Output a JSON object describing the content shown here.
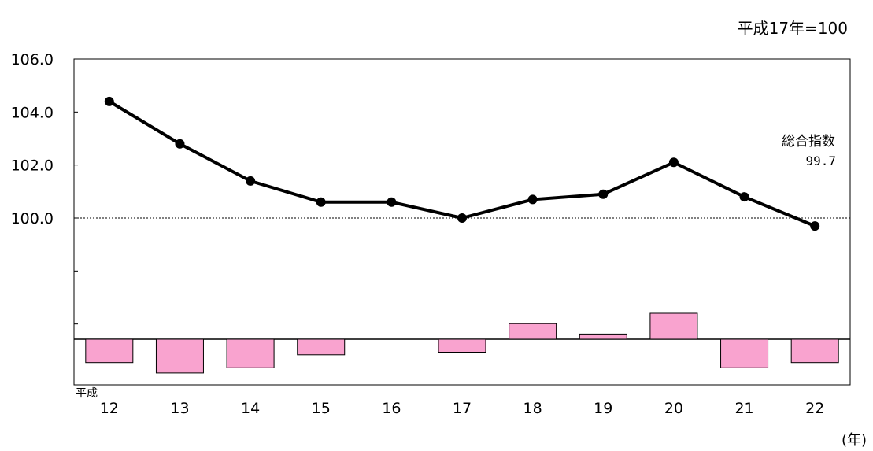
{
  "base_note": "平成17年=100",
  "unit_label": "(年)",
  "era_label": "平成",
  "series_label": "総合指数",
  "series_last_value": "99.7",
  "colors": {
    "line": "#000000",
    "bar_fill": "#f9a3cf",
    "bar_stroke": "#000000",
    "grid": "#000000"
  },
  "chart_data": {
    "type": "line",
    "categories": [
      "12",
      "13",
      "14",
      "15",
      "16",
      "17",
      "18",
      "19",
      "20",
      "21",
      "22"
    ],
    "series": [
      {
        "name": "総合指数",
        "type": "line",
        "values": [
          104.4,
          102.8,
          101.4,
          100.6,
          100.6,
          100.0,
          100.7,
          100.9,
          102.1,
          100.8,
          99.7
        ]
      },
      {
        "type": "bar",
        "values": [
          -0.9,
          -1.3,
          -1.1,
          -0.6,
          0.0,
          -0.5,
          0.6,
          0.2,
          1.0,
          -1.1,
          -0.9
        ]
      }
    ],
    "y_ticks": [
      "106.0",
      "104.0",
      "102.0",
      "100.0"
    ],
    "ylim": [
      98.0,
      106.0
    ],
    "reference_line": 100.0,
    "xlabel": "(年)",
    "grid": false
  }
}
